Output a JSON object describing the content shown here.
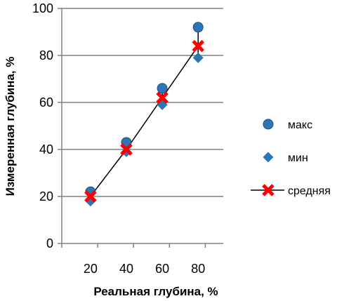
{
  "chart_data": {
    "type": "scatter",
    "xlabel": "Реальная глубина, %",
    "ylabel": "Измеренная глубина, %",
    "xlim": [
      10,
      100
    ],
    "ylim": [
      0,
      100
    ],
    "xticks": [
      "20",
      "40",
      "60",
      "80"
    ],
    "yticks": [
      "0",
      "20",
      "40",
      "60",
      "80",
      "100"
    ],
    "grid": "horizontal",
    "legend_position": "right",
    "series": [
      {
        "name": "макс",
        "marker": "circle",
        "color": "#2e75b6",
        "points": [
          [
            26,
            22
          ],
          [
            46,
            43
          ],
          [
            66,
            66
          ],
          [
            86,
            92
          ]
        ]
      },
      {
        "name": "мин",
        "marker": "diamond",
        "color": "#2e75b6",
        "points": [
          [
            26,
            18
          ],
          [
            46,
            39
          ],
          [
            66,
            59
          ],
          [
            86,
            79
          ]
        ]
      },
      {
        "name": "средняя",
        "marker": "cross",
        "color": "#ff0000",
        "line_color": "#000000",
        "points": [
          [
            26,
            20
          ],
          [
            46,
            40
          ],
          [
            66,
            62
          ],
          [
            86,
            84
          ]
        ]
      }
    ]
  }
}
